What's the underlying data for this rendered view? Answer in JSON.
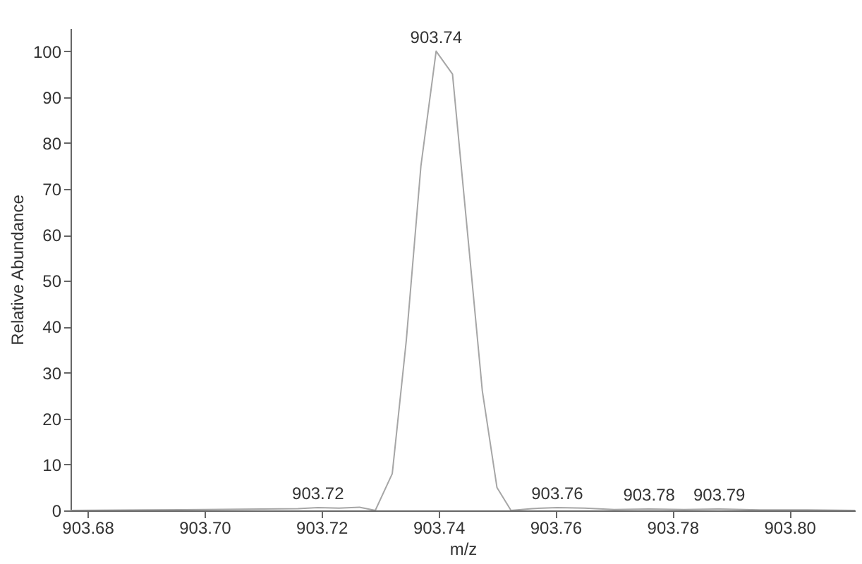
{
  "chart_data": {
    "type": "line",
    "xlabel": "m/z",
    "ylabel": "Relative Abundance",
    "series": [
      {
        "color": "#a6a6a6",
        "x": [
          903.6771,
          903.69,
          903.7,
          903.71,
          903.716,
          903.7194,
          903.723,
          903.7265,
          903.7292,
          903.7321,
          903.7345,
          903.737,
          903.7396,
          903.7424,
          903.745,
          903.7475,
          903.75,
          903.7524,
          903.756,
          903.7603,
          903.765,
          903.77,
          903.776,
          903.782,
          903.788,
          903.795,
          903.803,
          903.8112
        ],
        "values": [
          0,
          0.1,
          0.2,
          0.3,
          0.4,
          0.6,
          0.5,
          0.7,
          0,
          8,
          37,
          75,
          100,
          95,
          60,
          26,
          5,
          0,
          0.4,
          0.6,
          0.5,
          0.2,
          0.3,
          0.2,
          0.3,
          0.1,
          0.1,
          0
        ]
      }
    ],
    "annotations": [
      {
        "text": "903.72",
        "x": 903.7194,
        "y": 0.6
      },
      {
        "text": "903.74",
        "x": 903.7396,
        "y": 100
      },
      {
        "text": "903.76",
        "x": 903.7603,
        "y": 0.6
      },
      {
        "text": "903.78",
        "x": 903.776,
        "y": 0.3
      },
      {
        "text": "903.79",
        "x": 903.788,
        "y": 0.3
      }
    ],
    "xlim": [
      903.6771,
      903.8112
    ],
    "ylim": [
      0,
      105
    ],
    "xticks": [
      903.68,
      {
        "value": 903.7,
        "label": "903.70"
      },
      903.72,
      903.74,
      903.76,
      903.78,
      {
        "value": 903.8,
        "label": "903.80"
      }
    ],
    "yticks": [
      0,
      10,
      20,
      30,
      40,
      50,
      60,
      70,
      80,
      90,
      100
    ],
    "grid": false,
    "marker": "none",
    "line_style": "solid"
  }
}
